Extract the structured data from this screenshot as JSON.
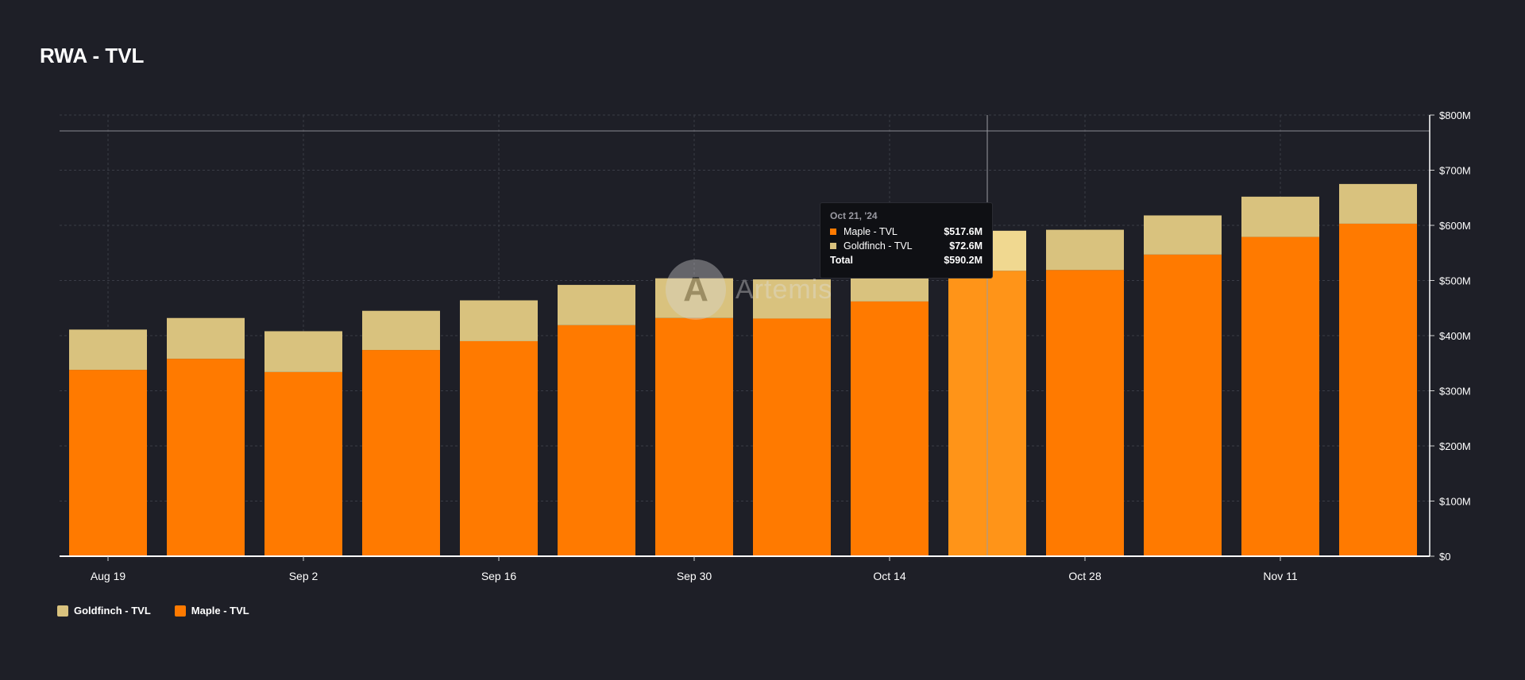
{
  "title": "RWA - TVL",
  "colors": {
    "background": "#1e1f27",
    "maple": "#ff7a00",
    "maple_highlight": "#ff9418",
    "goldfinch": "#d9c27e",
    "goldfinch_highlight": "#f0d890",
    "grid": "#3a3c46",
    "axis": "#d0d0d0"
  },
  "watermark": {
    "text": "Artemis",
    "logo_icon": "artemis-logo-icon"
  },
  "legend": {
    "position": "bottom-left",
    "items": [
      {
        "label": "Goldfinch - TVL",
        "color": "#d9c27e"
      },
      {
        "label": "Maple - TVL",
        "color": "#ff7a00"
      }
    ]
  },
  "tooltip": {
    "date": "Oct 21, '24",
    "rows": [
      {
        "label": "Maple - TVL",
        "value": "$517.6M",
        "color": "#ff7a00"
      },
      {
        "label": "Goldfinch - TVL",
        "value": "$72.6M",
        "color": "#d9c27e"
      }
    ],
    "total_label": "Total",
    "total_value": "$590.2M"
  },
  "chart_data": {
    "type": "bar",
    "stacked": true,
    "title": "RWA - TVL",
    "x": [
      "2024-08-19",
      "2024-08-26",
      "2024-09-02",
      "2024-09-09",
      "2024-09-16",
      "2024-09-23",
      "2024-09-30",
      "2024-10-07",
      "2024-10-14",
      "2024-10-21",
      "2024-10-28",
      "2024-11-04",
      "2024-11-11",
      "2024-11-18"
    ],
    "x_tick_labels": [
      "Aug 19",
      "",
      "Sep 2",
      "",
      "Sep 16",
      "",
      "Sep 30",
      "",
      "Oct 14",
      "",
      "Oct 28",
      "",
      "Nov 11",
      ""
    ],
    "series": [
      {
        "name": "Maple - TVL",
        "color": "#ff7a00",
        "values": [
          338,
          358,
          334,
          374,
          390,
          419,
          432,
          431,
          462,
          517.6,
          519,
          547,
          579,
          603
        ]
      },
      {
        "name": "Goldfinch - TVL",
        "color": "#d9c27e",
        "values": [
          73,
          74,
          74,
          71,
          74,
          73,
          72,
          71,
          72,
          72.6,
          73,
          71,
          73,
          72
        ]
      }
    ],
    "highlighted_index": 9,
    "y_axis": {
      "position": "right",
      "range": [
        0,
        800
      ],
      "ticks": [
        0,
        100,
        200,
        300,
        400,
        500,
        600,
        700,
        800
      ],
      "tick_labels": [
        "$0",
        "$100M",
        "$200M",
        "$300M",
        "$400M",
        "$500M",
        "$600M",
        "$700M",
        "$800M"
      ]
    },
    "grid": true,
    "legend_position": "bottom-left"
  }
}
